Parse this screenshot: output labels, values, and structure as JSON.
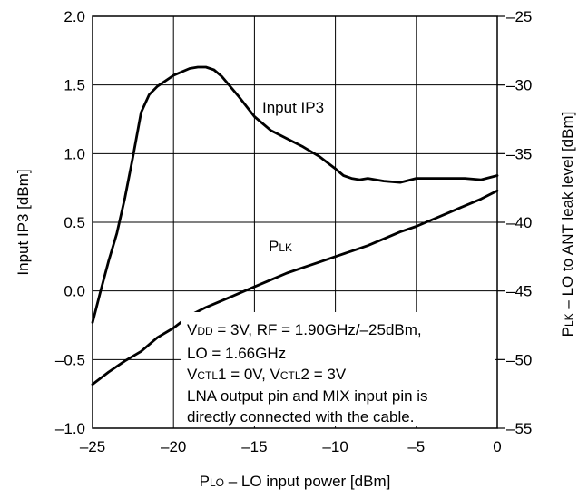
{
  "chart_data": {
    "type": "line",
    "x_axis": {
      "label_main": "P",
      "label_sub": "LO",
      "label_rest": " – LO input power [dBm]",
      "range": [
        -25,
        0
      ],
      "ticks": [
        -25,
        -20,
        -15,
        -10,
        -5,
        0
      ],
      "tick_labels": [
        "–25",
        "–20",
        "–15",
        "–10",
        "–5",
        "0"
      ]
    },
    "y_left": {
      "label": "Input IP3 [dBm]",
      "range": [
        -1.0,
        2.0
      ],
      "ticks": [
        -1.0,
        -0.5,
        0.0,
        0.5,
        1.0,
        1.5,
        2.0
      ],
      "tick_labels": [
        "–1.0",
        "–0.5",
        "0.0",
        "0.5",
        "1.0",
        "1.5",
        "2.0"
      ]
    },
    "y_right": {
      "label_main": "P",
      "label_sub": "LK",
      "label_rest": " – LO to ANT leak level [dBm]",
      "range": [
        -55,
        -25
      ],
      "ticks": [
        -55,
        -50,
        -45,
        -40,
        -35,
        -30,
        -25
      ],
      "tick_labels": [
        "–55",
        "–50",
        "–45",
        "–40",
        "–35",
        "–30",
        "–25"
      ]
    },
    "grid": true,
    "series": [
      {
        "name": "Input IP3",
        "axis": "left",
        "x": [
          -25,
          -24.5,
          -24,
          -23.5,
          -23,
          -22.5,
          -22,
          -21.5,
          -21,
          -20,
          -19,
          -18.5,
          -18,
          -17.5,
          -17,
          -16,
          -15,
          -14,
          -13,
          -12,
          -11,
          -10,
          -9.5,
          -9,
          -8.5,
          -8,
          -7,
          -6,
          -5,
          -4,
          -3,
          -2,
          -1,
          0
        ],
        "y": [
          -0.23,
          0.0,
          0.22,
          0.42,
          0.68,
          0.98,
          1.3,
          1.43,
          1.49,
          1.57,
          1.62,
          1.63,
          1.63,
          1.61,
          1.56,
          1.42,
          1.27,
          1.17,
          1.11,
          1.05,
          0.98,
          0.89,
          0.84,
          0.82,
          0.81,
          0.82,
          0.8,
          0.79,
          0.82,
          0.82,
          0.82,
          0.82,
          0.81,
          0.84
        ]
      },
      {
        "name": "PLK",
        "axis": "right",
        "x": [
          -25,
          -24,
          -23,
          -22,
          -21,
          -20,
          -19,
          -18,
          -17,
          -16,
          -15,
          -14,
          -13,
          -12,
          -11,
          -10,
          -9,
          -8,
          -7,
          -6,
          -5,
          -4,
          -3,
          -2,
          -1,
          0
        ],
        "y": [
          -51.8,
          -50.9,
          -50.1,
          -49.4,
          -48.4,
          -47.7,
          -46.8,
          -46.2,
          -45.7,
          -45.2,
          -44.7,
          -44.2,
          -43.7,
          -43.3,
          -42.9,
          -42.5,
          -42.1,
          -41.7,
          -41.2,
          -40.7,
          -40.3,
          -39.8,
          -39.3,
          -38.8,
          -38.3,
          -37.7
        ]
      }
    ],
    "series_labels": {
      "ip3": "Input IP3",
      "plk_main": "P",
      "plk_sub": "LK"
    },
    "annotation_lines": [
      [
        {
          "t": "V"
        },
        {
          "t": "DD",
          "sub": true
        },
        {
          "t": " = 3V, RF = 1.90GHz/–25dBm,"
        }
      ],
      [
        {
          "t": "LO = 1.66GHz"
        }
      ],
      [
        {
          "t": "V"
        },
        {
          "t": "CTL",
          "sub": true
        },
        {
          "t": "1 = 0V, V"
        },
        {
          "t": "CTL",
          "sub": true
        },
        {
          "t": "2 = 3V"
        }
      ],
      [
        {
          "t": "LNA output pin and MIX input pin is"
        }
      ],
      [
        {
          "t": "directly connected with the cable."
        }
      ]
    ],
    "colors": {
      "line": "#000000",
      "grid": "#000000",
      "background": "#ffffff"
    }
  }
}
